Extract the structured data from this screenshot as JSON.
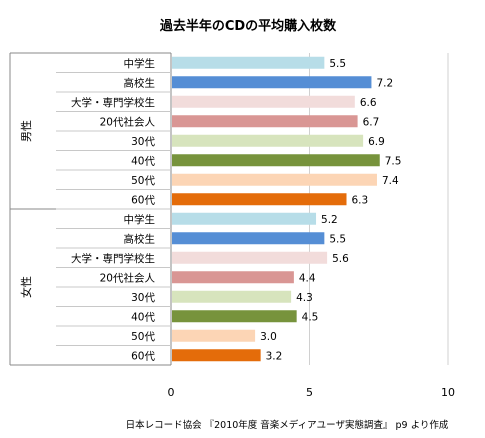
{
  "chart_data": {
    "type": "bar",
    "orientation": "horizontal",
    "title": "過去半年のCDの平均購入枚数",
    "groups": [
      {
        "label": "男性",
        "categories": [
          "中学生",
          "高校生",
          "大学・専門学校生",
          "20代社会人",
          "30代",
          "40代",
          "50代",
          "60代"
        ],
        "values": [
          5.5,
          7.2,
          6.6,
          6.7,
          6.9,
          7.5,
          7.4,
          6.3
        ]
      },
      {
        "label": "女性",
        "categories": [
          "中学生",
          "高校生",
          "大学・専門学校生",
          "20代社会人",
          "30代",
          "40代",
          "50代",
          "60代"
        ],
        "values": [
          5.2,
          5.5,
          5.6,
          4.4,
          4.3,
          4.5,
          3.0,
          3.2
        ]
      }
    ],
    "category_colors": [
      "#b7dde8",
      "#558ed5",
      "#f2dcdb",
      "#d99694",
      "#d7e4bd",
      "#77933c",
      "#fcd5b5",
      "#e46c0a"
    ],
    "xlim": [
      0,
      10
    ],
    "xticks": [
      0,
      5,
      10
    ],
    "grid": true,
    "legend": "none",
    "source": "日本レコード協会 『2010年度 音楽メディアユーザ実態調査』 p9 より作成"
  }
}
